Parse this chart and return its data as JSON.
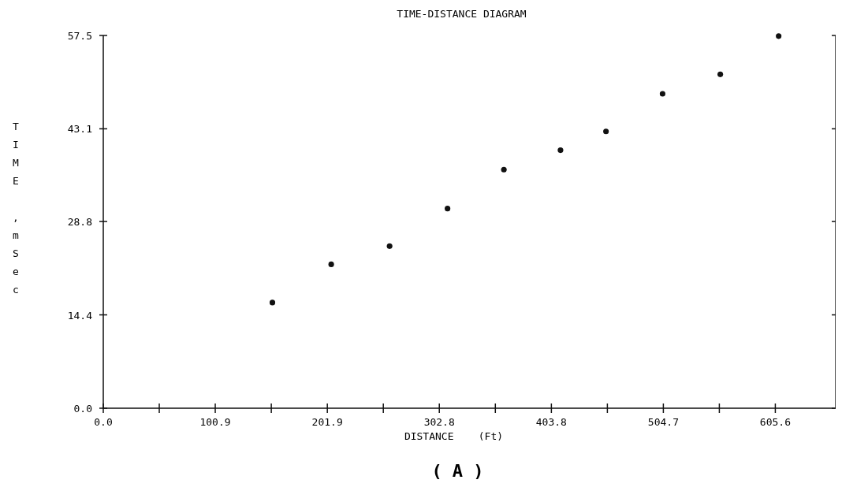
{
  "chart_data": {
    "type": "scatter",
    "title": "TIME-DISTANCE DIAGRAM",
    "xlabel": "DISTANCE    (Ft)",
    "ylabel": "TIME ,mSec",
    "annotations": [
      "( A )"
    ],
    "x": [
      152.4,
      205.4,
      258,
      310.2,
      361,
      412,
      453,
      504,
      556,
      608.6
    ],
    "series": [
      {
        "color": "#111111",
        "values": [
          16.3,
          22.2,
          25.0,
          30.8,
          36.8,
          39.8,
          42.7,
          48.5,
          51.5,
          57.4
        ]
      }
    ],
    "xlim": [
      0,
      660
    ],
    "ylim": [
      0,
      57.5
    ],
    "xticks": [
      {
        "value": 0,
        "label": "0.0"
      },
      {
        "value": 50.45,
        "label": null
      },
      {
        "value": 100.9,
        "label": "100.9"
      },
      {
        "value": 151.4,
        "label": null
      },
      {
        "value": 201.9,
        "label": "201.9"
      },
      {
        "value": 252.35,
        "label": null
      },
      {
        "value": 302.8,
        "label": "302.8"
      },
      {
        "value": 353.3,
        "label": null
      },
      {
        "value": 403.8,
        "label": "403.8"
      },
      {
        "value": 454.25,
        "label": null
      },
      {
        "value": 504.7,
        "label": "504.7"
      },
      {
        "value": 555.15,
        "label": null
      },
      {
        "value": 605.6,
        "label": "605.6"
      }
    ],
    "yticks": [
      {
        "value": 0,
        "label": "0.0"
      },
      {
        "value": 14.4,
        "label": "14.4"
      },
      {
        "value": 28.8,
        "label": "28.8"
      },
      {
        "value": 43.1,
        "label": "43.1"
      },
      {
        "value": 57.5,
        "label": "57.5"
      }
    ],
    "marker": "circle",
    "grid": false
  }
}
